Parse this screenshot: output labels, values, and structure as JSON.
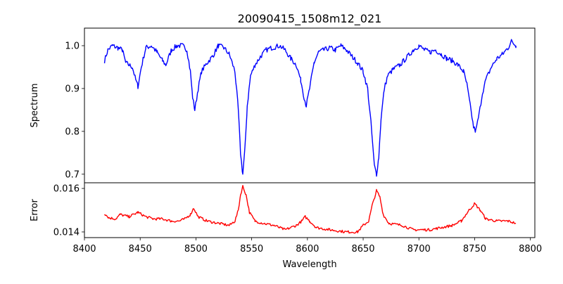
{
  "chart_data": {
    "type": "line",
    "title": "20090415_1508m12_021",
    "xlabel": "Wavelength",
    "xlim": [
      8400,
      8804
    ],
    "xticks": [
      8400,
      8450,
      8500,
      8550,
      8600,
      8650,
      8700,
      8750,
      8800
    ],
    "panels": [
      {
        "name": "Spectrum",
        "ylabel": "Spectrum",
        "ylim": [
          0.68,
          1.041
        ],
        "yticks": [
          0.7,
          0.8,
          0.9,
          1.0
        ],
        "ytick_labels": [
          "0.7",
          "0.8",
          "0.9",
          "1.0"
        ],
        "color": "#0000ff",
        "x": [
          8418,
          8421,
          8425,
          8430,
          8434,
          8437,
          8440,
          8443,
          8446,
          8448,
          8451,
          8455,
          8460,
          8465,
          8470,
          8473,
          8478,
          8483,
          8488,
          8492,
          8495,
          8497,
          8499,
          8502,
          8505,
          8510,
          8515,
          8520,
          8525,
          8530,
          8535,
          8538,
          8540,
          8542,
          8544,
          8546,
          8549,
          8553,
          8558,
          8563,
          8568,
          8575,
          8580,
          8585,
          8590,
          8594,
          8597,
          8599,
          8602,
          8606,
          8610,
          8615,
          8620,
          8625,
          8630,
          8635,
          8640,
          8645,
          8650,
          8654,
          8657,
          8660,
          8662,
          8664,
          8666,
          8669,
          8672,
          8677,
          8683,
          8690,
          8695,
          8700,
          8705,
          8710,
          8715,
          8720,
          8725,
          8730,
          8735,
          8740,
          8743,
          8746,
          8749,
          8751,
          8754,
          8757,
          8760,
          8765,
          8770,
          8775,
          8780,
          8783,
          8787
        ],
        "y": [
          0.965,
          0.99,
          1.0,
          0.995,
          0.99,
          0.96,
          0.955,
          0.95,
          0.92,
          0.905,
          0.95,
          0.995,
          1.0,
          0.985,
          0.965,
          0.955,
          0.99,
          1.0,
          1.0,
          0.99,
          0.94,
          0.88,
          0.85,
          0.9,
          0.94,
          0.96,
          0.975,
          1.0,
          0.995,
          0.98,
          0.94,
          0.85,
          0.75,
          0.7,
          0.76,
          0.86,
          0.93,
          0.955,
          0.975,
          0.99,
          0.995,
          1.0,
          0.99,
          0.97,
          0.955,
          0.92,
          0.88,
          0.86,
          0.9,
          0.96,
          0.985,
          0.99,
          0.995,
          0.99,
          1.0,
          0.99,
          0.975,
          0.96,
          0.94,
          0.9,
          0.82,
          0.72,
          0.7,
          0.74,
          0.83,
          0.9,
          0.93,
          0.945,
          0.955,
          0.975,
          0.99,
          1.0,
          0.99,
          0.985,
          0.99,
          0.98,
          0.97,
          0.965,
          0.955,
          0.94,
          0.91,
          0.86,
          0.81,
          0.8,
          0.84,
          0.89,
          0.92,
          0.95,
          0.97,
          0.98,
          0.995,
          1.01,
          1.0
        ]
      },
      {
        "name": "Error",
        "ylabel": "Error",
        "ylim": [
          0.01374,
          0.01626
        ],
        "yticks": [
          0.014,
          0.016
        ],
        "ytick_labels": [
          "0.014",
          "0.016"
        ],
        "color": "#ff0000",
        "x": [
          8418,
          8422,
          8428,
          8432,
          8440,
          8448,
          8455,
          8462,
          8470,
          8478,
          8485,
          8490,
          8495,
          8498,
          8502,
          8510,
          8520,
          8530,
          8535,
          8538,
          8540,
          8542,
          8545,
          8548,
          8553,
          8560,
          8570,
          8580,
          8590,
          8595,
          8598,
          8602,
          8608,
          8620,
          8635,
          8645,
          8650,
          8655,
          8658,
          8662,
          8665,
          8668,
          8673,
          8685,
          8695,
          8710,
          8720,
          8730,
          8738,
          8745,
          8750,
          8755,
          8760,
          8770,
          8780,
          8787
        ],
        "y": [
          0.01485,
          0.01465,
          0.0146,
          0.0148,
          0.0147,
          0.0149,
          0.0147,
          0.0146,
          0.0146,
          0.0145,
          0.0145,
          0.0146,
          0.0148,
          0.0151,
          0.0147,
          0.0145,
          0.0144,
          0.0143,
          0.0145,
          0.015,
          0.0157,
          0.0161,
          0.0157,
          0.0149,
          0.0145,
          0.0144,
          0.0143,
          0.0141,
          0.0143,
          0.0145,
          0.0147,
          0.0145,
          0.0142,
          0.0141,
          0.014,
          0.014,
          0.0143,
          0.0145,
          0.0152,
          0.0159,
          0.0156,
          0.0148,
          0.0144,
          0.0143,
          0.0141,
          0.0141,
          0.0142,
          0.0143,
          0.0145,
          0.015,
          0.0153,
          0.015,
          0.0146,
          0.0145,
          0.0145,
          0.0144
        ]
      }
    ]
  }
}
